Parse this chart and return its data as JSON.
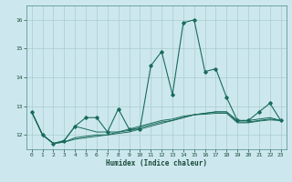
{
  "xlabel": "Humidex (Indice chaleur)",
  "bg_color": "#cce8ee",
  "line_color": "#1a6b5a",
  "grid_color": "#aacccc",
  "xlim": [
    -0.5,
    23.5
  ],
  "ylim": [
    11.5,
    16.5
  ],
  "yticks": [
    12,
    13,
    14,
    15,
    16
  ],
  "xticks": [
    0,
    1,
    2,
    3,
    4,
    5,
    6,
    7,
    8,
    9,
    10,
    11,
    12,
    13,
    14,
    15,
    16,
    17,
    18,
    19,
    20,
    21,
    22,
    23
  ],
  "series": [
    [
      12.8,
      12.0,
      11.7,
      11.8,
      12.3,
      12.6,
      12.6,
      12.1,
      12.9,
      12.2,
      12.2,
      14.4,
      14.9,
      13.4,
      15.9,
      16.0,
      14.2,
      14.3,
      13.3,
      12.5,
      12.5,
      12.8,
      13.1,
      12.5
    ],
    [
      12.8,
      12.0,
      11.7,
      11.8,
      12.3,
      12.2,
      12.1,
      12.1,
      12.1,
      12.15,
      12.25,
      12.35,
      12.45,
      12.5,
      12.6,
      12.7,
      12.75,
      12.8,
      12.8,
      12.5,
      12.5,
      12.55,
      12.6,
      12.5
    ],
    [
      12.8,
      12.0,
      11.7,
      11.75,
      11.9,
      11.95,
      12.0,
      12.0,
      12.05,
      12.1,
      12.2,
      12.3,
      12.4,
      12.5,
      12.6,
      12.7,
      12.75,
      12.8,
      12.8,
      12.45,
      12.45,
      12.5,
      12.55,
      12.5
    ],
    [
      12.8,
      12.0,
      11.7,
      11.75,
      11.85,
      11.9,
      11.95,
      12.0,
      12.1,
      12.2,
      12.3,
      12.4,
      12.5,
      12.55,
      12.65,
      12.7,
      12.72,
      12.75,
      12.75,
      12.42,
      12.42,
      12.48,
      12.52,
      12.5
    ]
  ]
}
